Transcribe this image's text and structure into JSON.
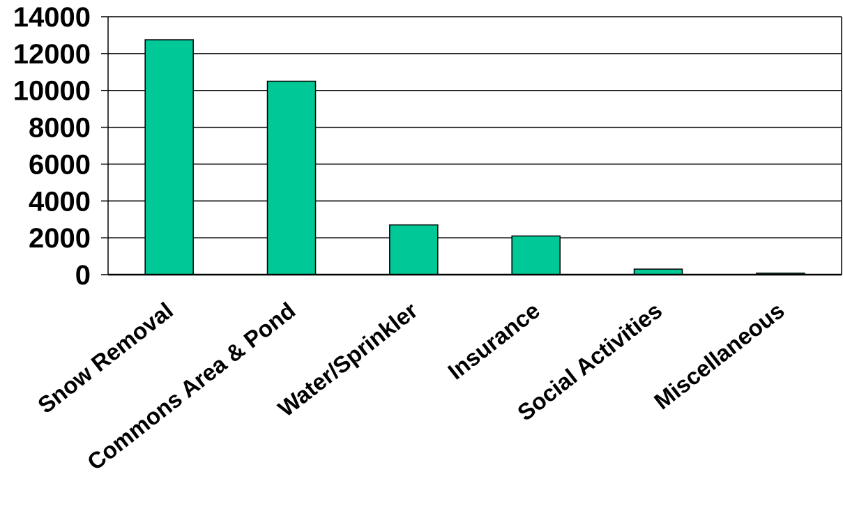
{
  "chart_data": {
    "type": "bar",
    "categories": [
      "Snow Removal",
      "Commons Area & Pond",
      "Water/Sprinkler",
      "Insurance",
      "Social Activities",
      "Miscellaneous"
    ],
    "values": [
      12750,
      10500,
      2700,
      2100,
      300,
      80
    ],
    "ylim": [
      0,
      14000
    ],
    "yticks": [
      0,
      2000,
      4000,
      6000,
      8000,
      10000,
      12000,
      14000
    ],
    "grid": true,
    "bar_color": "#00c896",
    "bar_edge_color": "#000000"
  }
}
